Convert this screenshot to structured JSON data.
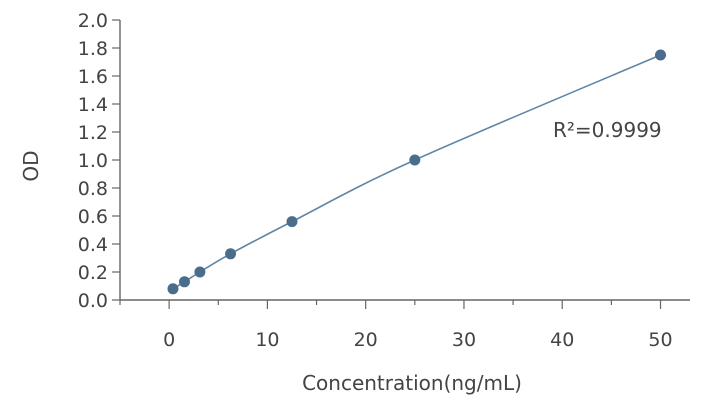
{
  "chart_data": {
    "type": "scatter",
    "title": "",
    "xlabel": "Concentration(ng/mL)",
    "ylabel": "OD",
    "xlim": [
      -5,
      53
    ],
    "ylim": [
      0,
      2.0
    ],
    "x_ticks": [
      0,
      10,
      20,
      30,
      40,
      50
    ],
    "x_tick_labels": [
      "0",
      "10",
      "20",
      "30",
      "40",
      "50"
    ],
    "y_ticks": [
      0.0,
      0.2,
      0.4,
      0.6,
      0.8,
      1.0,
      1.2,
      1.4,
      1.6,
      1.8,
      2.0
    ],
    "y_tick_labels": [
      "0.0",
      "0.2",
      "0.4",
      "0.6",
      "0.8",
      "1.0",
      "1.2",
      "1.4",
      "1.6",
      "1.8",
      "2.0"
    ],
    "grid": false,
    "series": [
      {
        "x": [
          0.39,
          1.56,
          3.13,
          6.25,
          12.5,
          25,
          50
        ],
        "y": [
          0.08,
          0.13,
          0.2,
          0.33,
          0.56,
          1.0,
          1.75
        ],
        "fit": "curve"
      }
    ],
    "annotations": [
      {
        "text": "R²=0.9999"
      }
    ],
    "colors": {
      "point": "#4a6d8c",
      "line": "#5f86a6",
      "axis": "#666666",
      "text": "#444444"
    }
  }
}
